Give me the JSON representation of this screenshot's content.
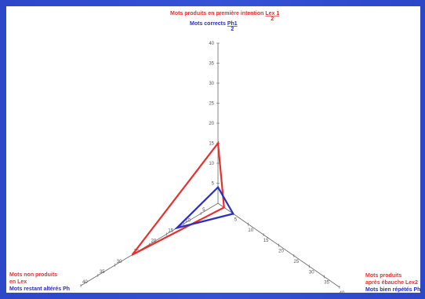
{
  "chart_data": {
    "type": "radar",
    "axis_max": 40,
    "ticks": [
      5,
      10,
      15,
      20,
      25,
      30,
      35,
      40
    ],
    "axes": [
      {
        "id": "top",
        "labels": [
          {
            "text": "Mots produits en première intention",
            "frac_num": "Lex 1",
            "frac_den": "2",
            "color": "red"
          },
          {
            "text": "Mots corrects",
            "frac_num": "Ph1",
            "frac_den": "2",
            "color": "blue"
          }
        ]
      },
      {
        "id": "right",
        "labels": [
          {
            "text": "Mots produits",
            "color": "red"
          },
          {
            "text": "après ébauche Lex2",
            "color": "red"
          },
          {
            "text": "Mots bien répétés Ph",
            "color": "blue"
          }
        ]
      },
      {
        "id": "left",
        "labels": [
          {
            "text": "Mots non produits",
            "color": "red"
          },
          {
            "text": "en Lex",
            "color": "red"
          },
          {
            "text": "Mots restant altérés Ph",
            "color": "blue"
          }
        ]
      }
    ],
    "series": [
      {
        "color": "#e8302e",
        "values": [
          15,
          2,
          25
        ]
      },
      {
        "color": "#2a2fc0",
        "values": [
          4,
          5,
          12
        ]
      }
    ]
  }
}
